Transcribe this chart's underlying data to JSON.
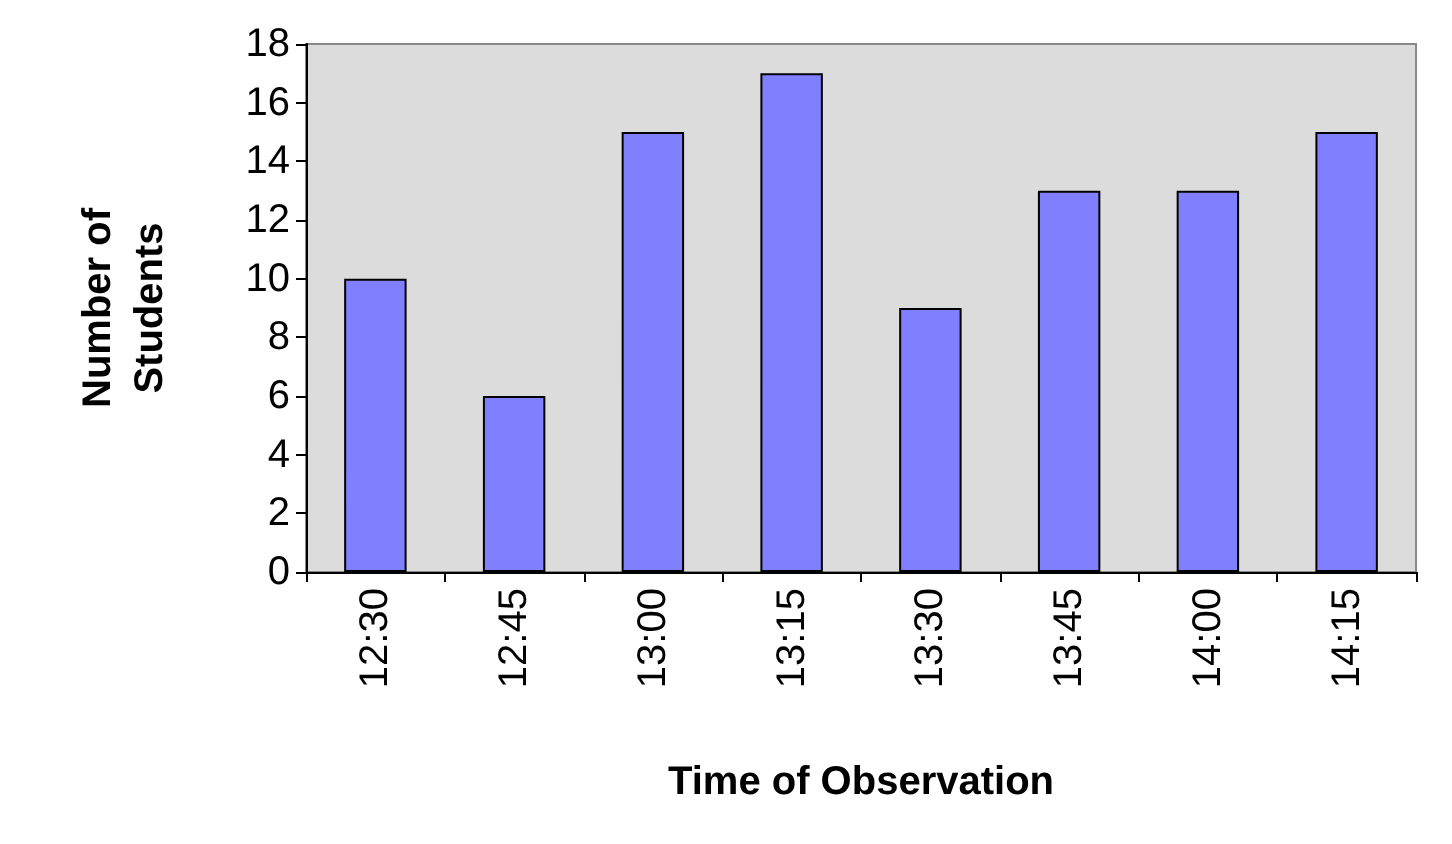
{
  "chart_data": {
    "type": "bar",
    "xlabel": "Time of Observation",
    "ylabel": "Number of\nStudents",
    "categories": [
      "12:30",
      "12:45",
      "13:00",
      "13:15",
      "13:30",
      "13:45",
      "14:00",
      "14:15"
    ],
    "values": [
      10,
      6,
      15,
      17,
      9,
      13,
      13,
      15
    ],
    "color": "#8080ff",
    "ylim": [
      0,
      18
    ],
    "yticks": [
      0,
      2,
      4,
      6,
      8,
      10,
      12,
      14,
      16,
      18
    ],
    "grid": false
  }
}
